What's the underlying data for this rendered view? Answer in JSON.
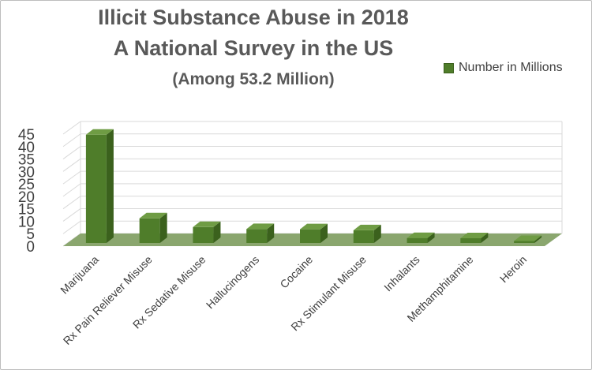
{
  "colors": {
    "bar_front": "#4f7d2a",
    "bar_side": "#3b611d",
    "bar_top": "#6f9c44",
    "floor": "#8aa66e",
    "grid": "#d9d9d9",
    "axis_text": "#404040"
  },
  "chart_data": {
    "type": "bar",
    "title": "Illicit Substance Abuse in 2018",
    "subtitle": "A National Survey in the US",
    "subtitle2": "(Among 53.2 Million)",
    "categories": [
      "Marijuana",
      "Rx Pain Reliever Misuse",
      "Rx Sedative Misuse",
      "Hallucinogens",
      "Cocaine",
      "Rx Stimulant Misuse",
      "Inhalants",
      "Methamphitamine",
      "Heroin"
    ],
    "series": [
      {
        "name": "Number in Millions",
        "values": [
          43.5,
          9.9,
          6.4,
          5.6,
          5.5,
          5.1,
          2.0,
          1.9,
          0.8
        ]
      }
    ],
    "ylim": [
      0,
      45
    ],
    "yticks": [
      0,
      5,
      10,
      15,
      20,
      25,
      30,
      35,
      40,
      45
    ],
    "xlabel": "",
    "ylabel": "",
    "legend_position": "top-right",
    "grid": true
  }
}
